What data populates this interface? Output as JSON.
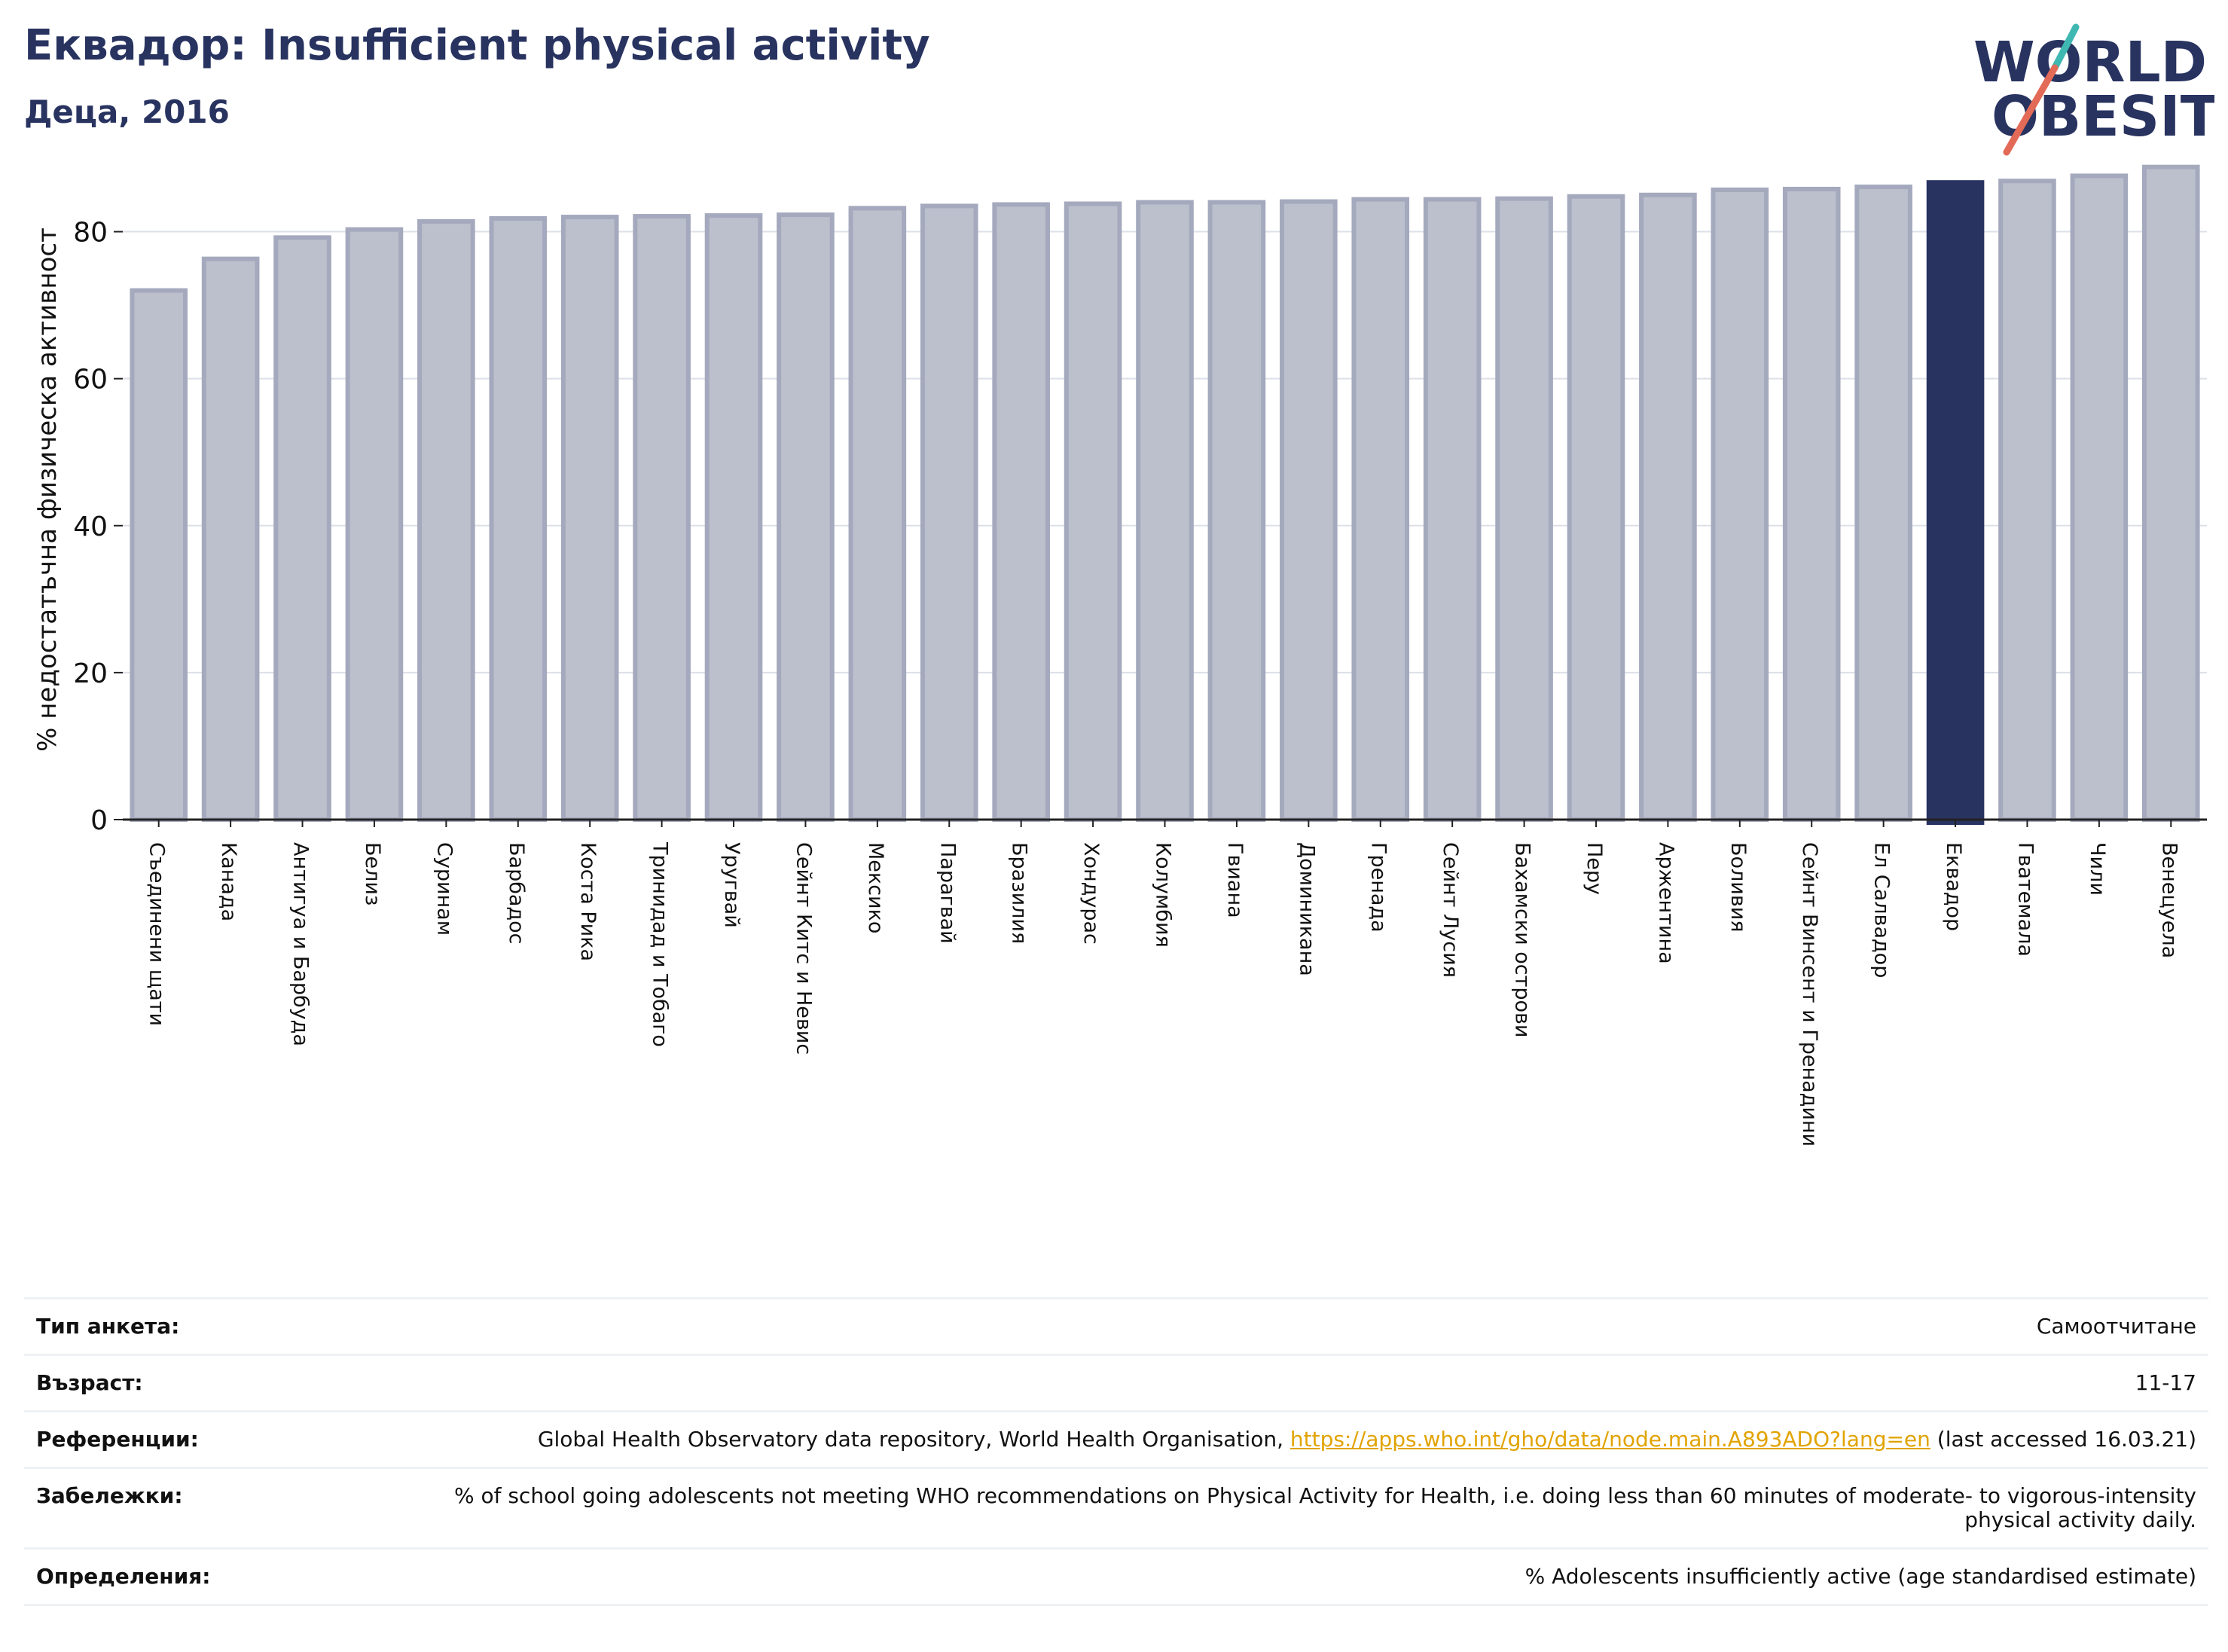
{
  "title": "Еквадор: Insufficient physical activity",
  "subtitle": "Деца, 2016",
  "logo": {
    "line1": "WORLD",
    "line2": "OBESITY"
  },
  "colors": {
    "highlight": "#283360",
    "bar_fill": "#bcbfcc",
    "bar_edge": "#a5a9bd",
    "title": "#283360",
    "link": "#e1a300"
  },
  "chart_data": {
    "type": "bar",
    "ylabel": "% недостатъчна физическа активност",
    "xlabel": "",
    "ylim": [
      0,
      90
    ],
    "yticks": [
      0,
      20,
      40,
      60,
      80
    ],
    "grid": true,
    "highlight": "Еквадор",
    "categories": [
      "Съединени щати",
      "Канада",
      "Антигуа и Барбуда",
      "Белиз",
      "Суринам",
      "Барбадос",
      "Коста Рика",
      "Тринидад и Тобаго",
      "Уругвай",
      "Сейнт Китс и Невис",
      "Мексико",
      "Парагвай",
      "Бразилия",
      "Хондурас",
      "Колумбия",
      "Гвиана",
      "Доминикана",
      "Гренада",
      "Сейнт Лусия",
      "Бахамски острови",
      "Перу",
      "Аржентина",
      "Боливия",
      "Сейнт Винсент и Гренадини",
      "Ел Салвадор",
      "Еквадор",
      "Гватемала",
      "Чили",
      "Венецуела"
    ],
    "values": [
      72.0,
      76.3,
      79.2,
      80.3,
      81.4,
      81.8,
      82.0,
      82.1,
      82.2,
      82.3,
      83.2,
      83.5,
      83.7,
      83.8,
      84.0,
      84.0,
      84.1,
      84.4,
      84.4,
      84.5,
      84.8,
      85.0,
      85.7,
      85.8,
      86.1,
      86.7,
      86.9,
      87.6,
      88.8
    ]
  },
  "info": [
    {
      "key": "Тип анкета:",
      "value": "Самоотчитане"
    },
    {
      "key": "Възраст:",
      "value": "11-17"
    },
    {
      "key": "Референции:",
      "value_pre": "Global Health Observatory data repository, World Health Organisation, ",
      "link": "https://apps.who.int/gho/data/node.main.A893ADO?lang=en",
      "value_post": " (last accessed 16.03.21)"
    },
    {
      "key": "Забележки:",
      "value": "% of school going adolescents not meeting WHO recommendations on Physical Activity for Health, i.e. doing less than 60 minutes of moderate- to vigorous-intensity physical activity daily."
    },
    {
      "key": "Определения:",
      "value": "% Adolescents insufficiently active (age standardised estimate)"
    }
  ]
}
